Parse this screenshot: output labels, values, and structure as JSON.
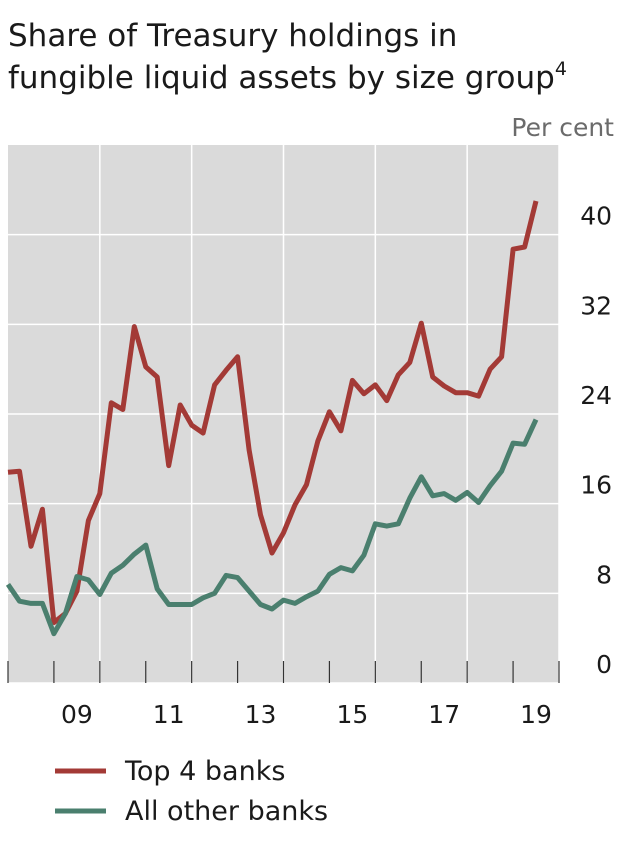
{
  "chart_data": {
    "type": "line",
    "title_lines": [
      "Share of Treasury holdings in",
      "fungible liquid assets by size group"
    ],
    "title_note": "4",
    "y_unit": "Per cent",
    "x": [
      2008,
      2008.25,
      2008.5,
      2008.75,
      2009,
      2009.25,
      2009.5,
      2009.75,
      2010,
      2010.25,
      2010.5,
      2010.75,
      2011,
      2011.25,
      2011.5,
      2011.75,
      2012,
      2012.25,
      2012.5,
      2012.75,
      2013,
      2013.25,
      2013.5,
      2013.75,
      2014,
      2014.25,
      2014.5,
      2014.75,
      2015,
      2015.25,
      2015.5,
      2015.75,
      2016,
      2016.25,
      2016.5,
      2016.75,
      2017,
      2017.25,
      2017.5,
      2017.75,
      2018,
      2018.25,
      2018.5,
      2018.75,
      2019,
      2019.25,
      2019.5
    ],
    "series": [
      {
        "name": "Top 4 banks",
        "color": "#a33a36",
        "values": [
          18.8,
          18.9,
          12.2,
          15.5,
          5.4,
          6.2,
          8.2,
          14.5,
          16.9,
          25,
          24.4,
          31.8,
          28.2,
          27.3,
          19.4,
          24.8,
          23,
          22.3,
          26.6,
          27.9,
          29.1,
          20.8,
          15,
          11.6,
          13.4,
          15.9,
          17.7,
          21.6,
          24.2,
          22.5,
          27,
          25.8,
          26.6,
          25.2,
          27.5,
          28.6,
          32.1,
          27.3,
          26.5,
          25.9,
          25.9,
          25.6,
          28,
          29.1,
          38.7,
          38.9,
          43
        ]
      },
      {
        "name": "All other banks",
        "color": "#4a7f6e",
        "values": [
          8.8,
          7.3,
          7.1,
          7.1,
          4.4,
          6.2,
          9.5,
          9.2,
          7.9,
          9.8,
          10.5,
          11.5,
          12.3,
          8.4,
          7,
          7,
          7,
          7.6,
          8,
          9.6,
          9.4,
          8.2,
          7,
          6.6,
          7.4,
          7.1,
          7.7,
          8.2,
          9.7,
          10.3,
          10,
          11.4,
          14.2,
          14,
          14.2,
          16.5,
          18.4,
          16.7,
          16.9,
          16.3,
          17,
          16.1,
          17.6,
          18.9,
          21.4,
          21.3,
          23.5
        ]
      }
    ],
    "xlim": [
      2008,
      2020
    ],
    "xticks": [
      2008,
      2009,
      2010,
      2011,
      2012,
      2013,
      2014,
      2015,
      2016,
      2017,
      2018,
      2019,
      2020
    ],
    "xtick_labels": [
      {
        "value": 2009.5,
        "label": "09"
      },
      {
        "value": 2011.5,
        "label": "11"
      },
      {
        "value": 2013.5,
        "label": "13"
      },
      {
        "value": 2015.5,
        "label": "15"
      },
      {
        "value": 2017.5,
        "label": "17"
      },
      {
        "value": 2019.5,
        "label": "19"
      }
    ],
    "ylim": [
      0,
      48
    ],
    "yticks": [
      0,
      8,
      16,
      24,
      32,
      40
    ],
    "grid": true,
    "legend": "bottom-left"
  }
}
